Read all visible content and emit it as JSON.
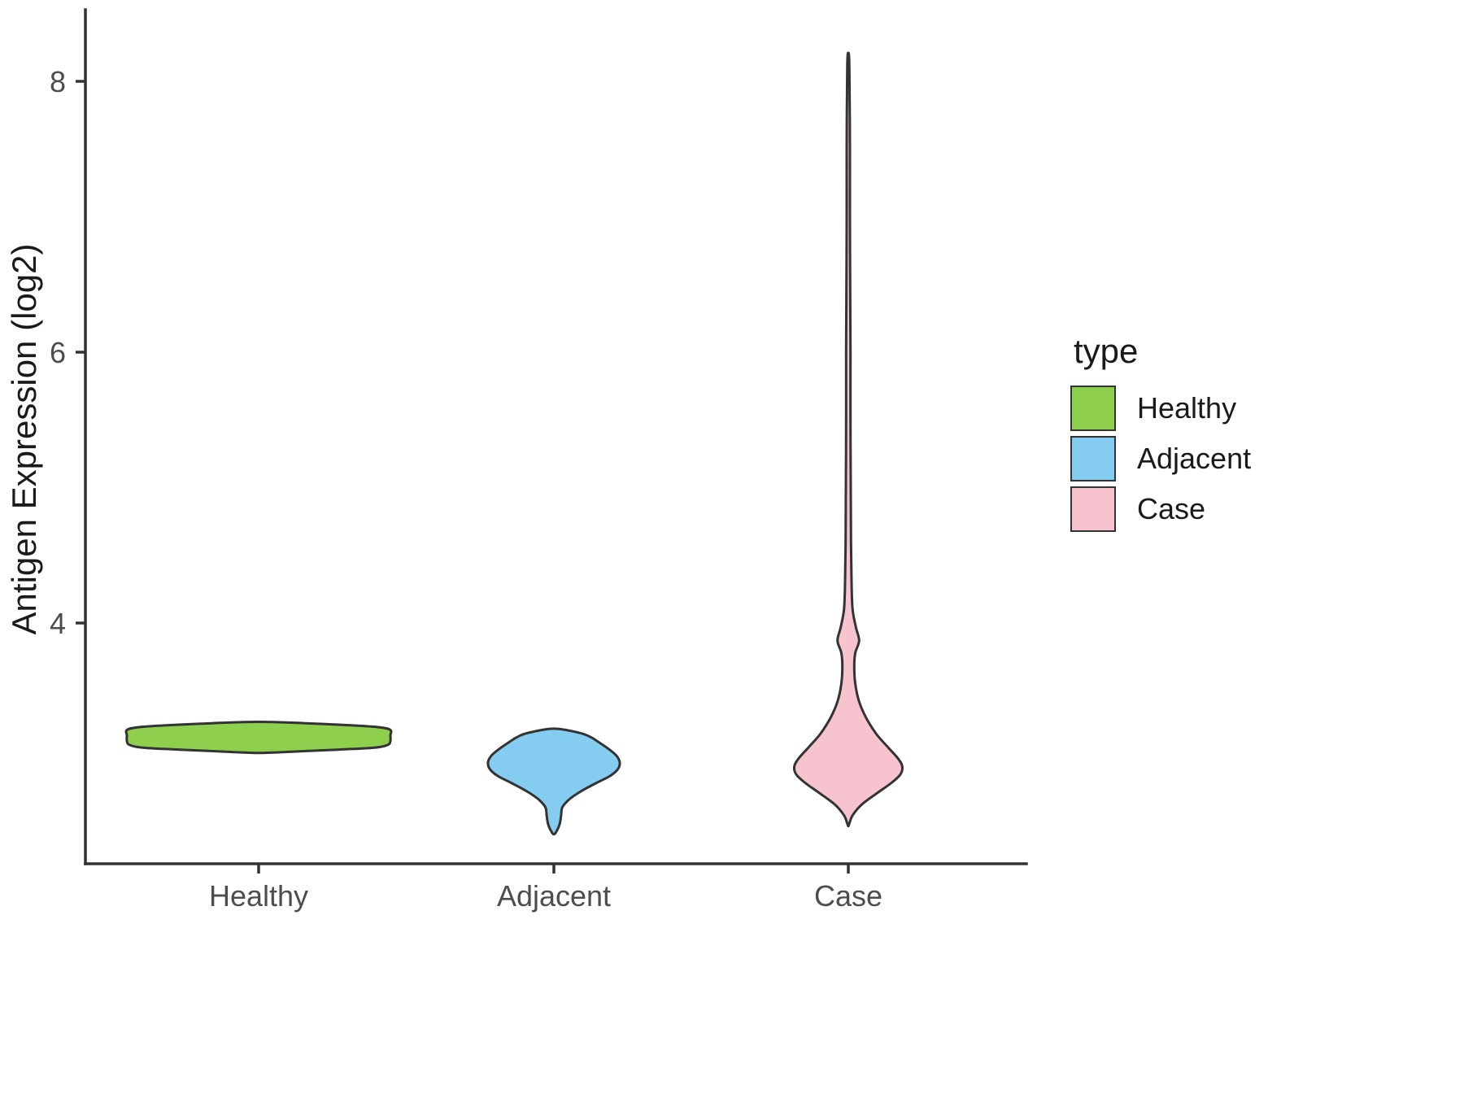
{
  "chart_data": {
    "type": "violin",
    "title": "",
    "xlabel": "",
    "ylabel": "Antigen Expression (log2)",
    "categories": [
      "Healthy",
      "Adjacent",
      "Case"
    ],
    "y_ticks": [
      4,
      6,
      8
    ],
    "y_range_shown": [
      2.2,
      8.5
    ],
    "grid": false,
    "legend_position": "right",
    "legend": {
      "title": "type",
      "entries": [
        {
          "label": "Healthy",
          "color": "#8ED04E"
        },
        {
          "label": "Adjacent",
          "color": "#85CCF1"
        },
        {
          "label": "Case",
          "color": "#F6C3CE"
        }
      ]
    },
    "colors": {
      "outline": "#333333",
      "axis": "#333333",
      "tick_text": "#4d4d4d",
      "title_text": "#1a1a1a",
      "background": "#ffffff"
    },
    "series": [
      {
        "name": "Healthy",
        "color": "#8ED04E",
        "rel_width": 1.0,
        "summary": {
          "center": 3.16,
          "min": 3.04,
          "max": 3.27,
          "shape": "flat wide pancake"
        },
        "profile": [
          [
            3.27,
            0
          ],
          [
            3.26,
            0.35
          ],
          [
            3.245,
            0.7
          ],
          [
            3.23,
            0.92
          ],
          [
            3.21,
            1
          ],
          [
            3.17,
            1
          ],
          [
            3.13,
            1
          ],
          [
            3.1,
            0.98
          ],
          [
            3.08,
            0.88
          ],
          [
            3.065,
            0.6
          ],
          [
            3.05,
            0.25
          ],
          [
            3.04,
            0
          ]
        ]
      },
      {
        "name": "Adjacent",
        "color": "#85CCF1",
        "rel_width": 0.5,
        "summary": {
          "center": 2.95,
          "min": 2.44,
          "max": 3.22,
          "shape": "diamond body with short lower tail"
        },
        "profile": [
          [
            3.22,
            0
          ],
          [
            3.19,
            0.38
          ],
          [
            3.16,
            0.55
          ],
          [
            3.12,
            0.68
          ],
          [
            3.07,
            0.83
          ],
          [
            3.02,
            0.95
          ],
          [
            2.97,
            1
          ],
          [
            2.92,
            0.97
          ],
          [
            2.87,
            0.85
          ],
          [
            2.82,
            0.65
          ],
          [
            2.76,
            0.42
          ],
          [
            2.7,
            0.24
          ],
          [
            2.64,
            0.13
          ],
          [
            2.58,
            0.11
          ],
          [
            2.52,
            0.09
          ],
          [
            2.47,
            0.05
          ],
          [
            2.44,
            0
          ]
        ]
      },
      {
        "name": "Case",
        "color": "#F6C3CE",
        "rel_width": 0.41,
        "summary": {
          "center": 2.94,
          "min": 2.5,
          "max": 8.21,
          "shape": "teardrop body with long thin upper tail and small bulge near 3.87"
        },
        "profile": [
          [
            8.21,
            0
          ],
          [
            8.1,
            0.02
          ],
          [
            7.5,
            0.03
          ],
          [
            7,
            0.03
          ],
          [
            6.5,
            0.035
          ],
          [
            6,
            0.04
          ],
          [
            5.5,
            0.04
          ],
          [
            5,
            0.045
          ],
          [
            4.6,
            0.05
          ],
          [
            4.3,
            0.06
          ],
          [
            4.1,
            0.08
          ],
          [
            3.97,
            0.14
          ],
          [
            3.87,
            0.2
          ],
          [
            3.78,
            0.13
          ],
          [
            3.68,
            0.11
          ],
          [
            3.55,
            0.13
          ],
          [
            3.42,
            0.2
          ],
          [
            3.3,
            0.33
          ],
          [
            3.18,
            0.52
          ],
          [
            3.08,
            0.74
          ],
          [
            3,
            0.92
          ],
          [
            2.94,
            1
          ],
          [
            2.88,
            0.96
          ],
          [
            2.82,
            0.8
          ],
          [
            2.74,
            0.52
          ],
          [
            2.66,
            0.25
          ],
          [
            2.58,
            0.08
          ],
          [
            2.52,
            0.02
          ],
          [
            2.5,
            0
          ]
        ]
      }
    ]
  }
}
